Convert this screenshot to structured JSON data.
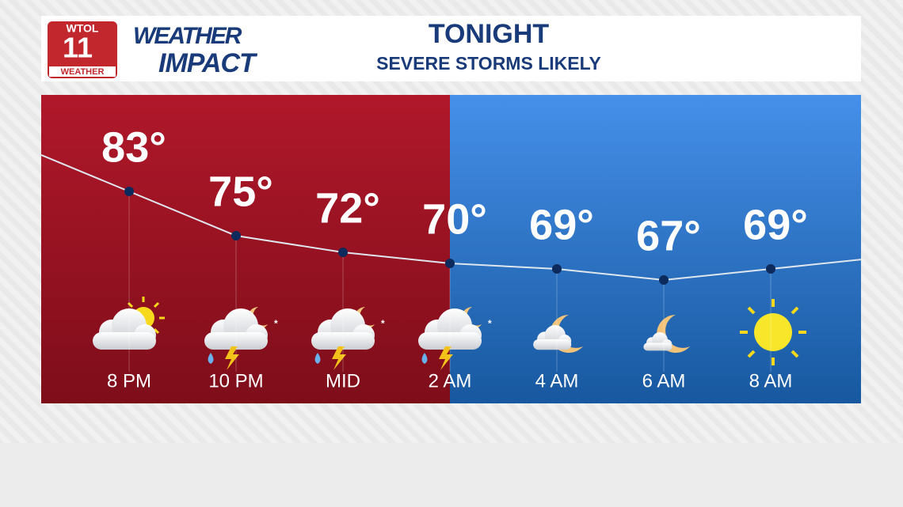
{
  "header": {
    "logo_station": "WTOL",
    "logo_channel": "11",
    "logo_label": "WEATHER",
    "brand_top": "WEATHER",
    "brand_bottom": "IMPACT"
  },
  "chart_data": {
    "type": "line",
    "title": "TONIGHT",
    "subtitle": "SEVERE STORMS LIKELY",
    "categories": [
      "8 PM",
      "10 PM",
      "MID",
      "2 AM",
      "4 AM",
      "6 AM",
      "8 AM"
    ],
    "values": [
      83,
      75,
      72,
      70,
      69,
      67,
      69
    ],
    "value_labels": [
      "83°",
      "75°",
      "72°",
      "70°",
      "69°",
      "67°",
      "69°"
    ],
    "color": "#dfe6ee",
    "marker_color": "#0d2a5c"
  }
}
